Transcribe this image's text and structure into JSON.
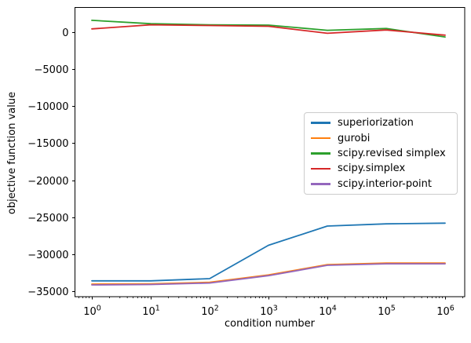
{
  "chart_data": {
    "type": "line",
    "title": "",
    "xlabel": "condition number",
    "ylabel": "objective function value",
    "x_scale": "log",
    "grid": false,
    "legend_position": "center-right",
    "x": [
      1,
      10,
      100,
      1000,
      10000,
      100000,
      1000000
    ],
    "x_tick_base": "10",
    "x_tick_exponents": [
      "0",
      "1",
      "2",
      "3",
      "4",
      "5",
      "6"
    ],
    "y_ticks": [
      0,
      -5000,
      -10000,
      -15000,
      -20000,
      -25000,
      -30000,
      -35000
    ],
    "y_tick_labels": [
      "0",
      "−5000",
      "−10000",
      "−15000",
      "−20000",
      "−25000",
      "−30000",
      "−35000"
    ],
    "xlim": [
      0.51,
      2150000
    ],
    "ylim": [
      -35750,
      3300
    ],
    "series": [
      {
        "name": "superiorization",
        "color": "#1f77b4",
        "values": [
          -33600,
          -33600,
          -33300,
          -28800,
          -26200,
          -25900,
          -25800
        ]
      },
      {
        "name": "gurobi",
        "color": "#ff7f0e",
        "values": [
          -34050,
          -34000,
          -33800,
          -32800,
          -31400,
          -31200,
          -31200
        ]
      },
      {
        "name": "scipy.revised simplex",
        "color": "#2ca02c",
        "values": [
          1600,
          1150,
          1000,
          950,
          250,
          500,
          -650
        ]
      },
      {
        "name": "scipy.simplex",
        "color": "#d62728",
        "values": [
          450,
          1000,
          900,
          800,
          -150,
          300,
          -400
        ]
      },
      {
        "name": "scipy.interior-point",
        "color": "#9467bd",
        "values": [
          -34150,
          -34100,
          -33900,
          -32900,
          -31500,
          -31300,
          -31300
        ]
      }
    ]
  },
  "colors": {
    "background": "#ffffff",
    "spine": "#000000",
    "tick": "#000000",
    "text": "#000000",
    "legend_border": "#cccccc"
  }
}
